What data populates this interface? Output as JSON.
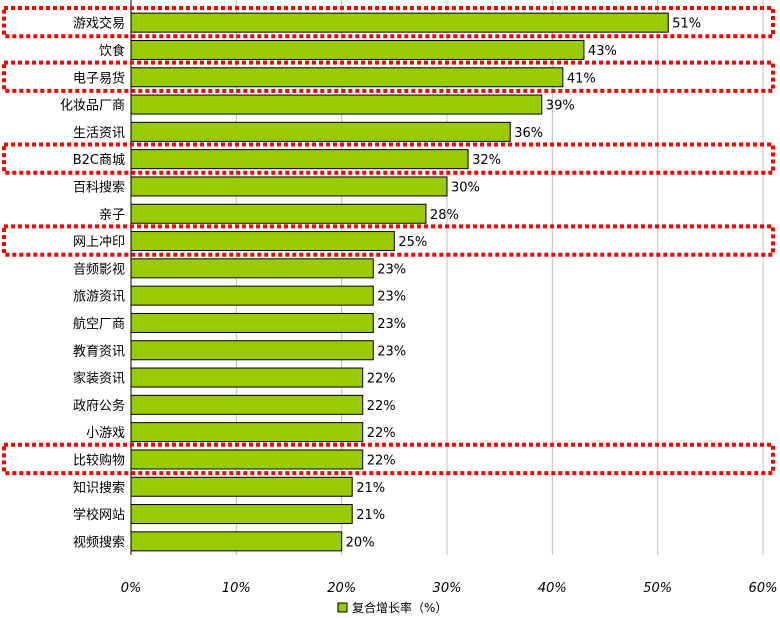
{
  "chart_data": {
    "type": "bar",
    "orientation": "horizontal",
    "categories": [
      "游戏交易",
      "饮食",
      "电子易货",
      "化妆品厂商",
      "生活资讯",
      "B2C商城",
      "百科搜索",
      "亲子",
      "网上冲印",
      "音频影视",
      "旅游资讯",
      "航空厂商",
      "教育资讯",
      "家装资讯",
      "政府公务",
      "小游戏",
      "比较购物",
      "知识搜索",
      "学校网站",
      "视频搜索"
    ],
    "series": [
      {
        "name": "复合增长率（%）",
        "values": [
          51,
          43,
          41,
          39,
          36,
          32,
          30,
          28,
          25,
          23,
          23,
          23,
          23,
          22,
          22,
          22,
          22,
          21,
          21,
          20
        ],
        "labels": [
          "51%",
          "43%",
          "41%",
          "39%",
          "36%",
          "32%",
          "30%",
          "28%",
          "25%",
          "23%",
          "23%",
          "23%",
          "23%",
          "22%",
          "22%",
          "22%",
          "22%",
          "21%",
          "21%",
          "20%"
        ]
      }
    ],
    "xlim": [
      0,
      60
    ],
    "x_ticks": [
      0,
      10,
      20,
      30,
      40,
      50,
      60
    ],
    "x_tick_labels": [
      "0%",
      "10%",
      "20%",
      "30%",
      "40%",
      "50%",
      "60%"
    ],
    "highlighted_categories": [
      "游戏交易",
      "电子易货",
      "B2C商城",
      "网上冲印",
      "比较购物"
    ],
    "grid": "vertical",
    "legend": "bottom",
    "colors": {
      "bar": "#99cc00",
      "bar_border": "#000000",
      "highlight": "#ff0000",
      "grid": "#c0c0c0"
    }
  }
}
